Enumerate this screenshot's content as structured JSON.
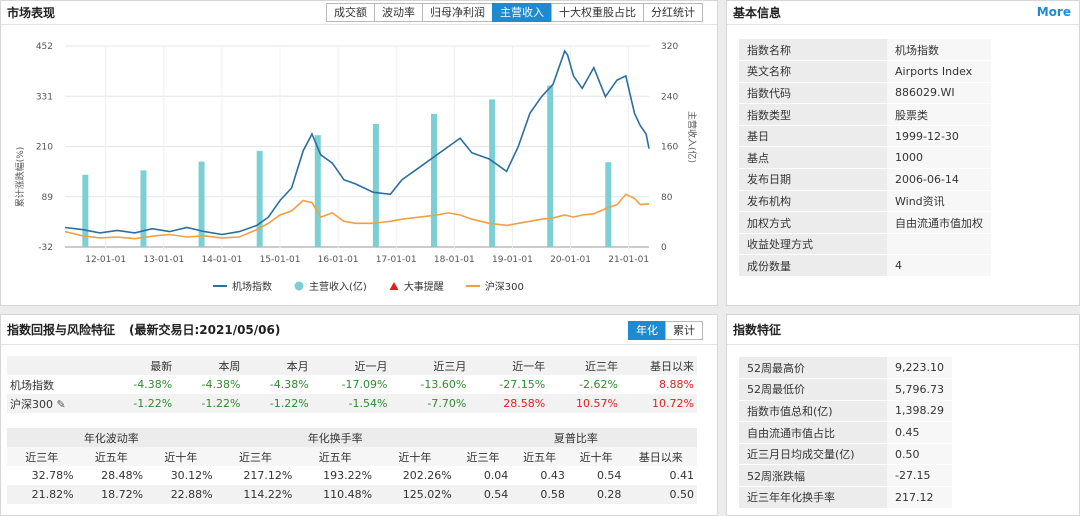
{
  "market": {
    "title": "市场表现",
    "tabs": [
      "成交额",
      "波动率",
      "归母净利润",
      "主营收入",
      "十大权重股占比",
      "分红统计"
    ],
    "active_tab": 3,
    "legend": [
      "机场指数",
      "主营收入(亿)",
      "大事提醒",
      "沪深300"
    ],
    "colors": {
      "index": "#2b6fa0",
      "bars": "#7ccfd4",
      "event": "#e02020",
      "hs300": "#f0a040"
    }
  },
  "chart_data": {
    "type": "line",
    "left_ylabel": "累计涨跌幅(%)",
    "right_ylabel": "主营收入(亿)",
    "left_ticks": [
      "452",
      "331",
      "210",
      "89",
      "-32"
    ],
    "right_ticks": [
      "320",
      "240",
      "160",
      "80",
      "0"
    ],
    "ylim_left": [
      -32,
      452
    ],
    "ylim_right": [
      0,
      320
    ],
    "x_ticks": [
      "12-01-01",
      "13-01-01",
      "14-01-01",
      "15-01-01",
      "16-01-01",
      "17-01-01",
      "18-01-01",
      "19-01-01",
      "20-01-01",
      "21-01-01"
    ],
    "x_range": [
      2011.3,
      2021.35
    ],
    "grid": true,
    "bars": {
      "name": "主营收入(亿)",
      "x": [
        2011.65,
        2012.65,
        2013.65,
        2014.65,
        2015.65,
        2016.65,
        2017.65,
        2018.65,
        2019.65,
        2020.65
      ],
      "values": [
        115,
        122,
        136,
        153,
        178,
        196,
        212,
        235,
        257,
        135
      ]
    },
    "series": [
      {
        "name": "机场指数",
        "x": [
          2011.3,
          2011.6,
          2011.9,
          2012.2,
          2012.5,
          2012.8,
          2013.1,
          2013.4,
          2013.7,
          2014.0,
          2014.3,
          2014.6,
          2014.8,
          2015.0,
          2015.2,
          2015.4,
          2015.55,
          2015.7,
          2015.9,
          2016.1,
          2016.3,
          2016.6,
          2016.9,
          2017.1,
          2017.4,
          2017.7,
          2017.9,
          2018.1,
          2018.3,
          2018.6,
          2018.9,
          2019.1,
          2019.3,
          2019.5,
          2019.7,
          2019.9,
          2019.95,
          2020.05,
          2020.2,
          2020.4,
          2020.6,
          2020.8,
          2020.95,
          2021.1,
          2021.2,
          2021.3,
          2021.35
        ],
        "values": [
          15,
          10,
          2,
          8,
          2,
          12,
          5,
          15,
          5,
          -2,
          5,
          20,
          40,
          80,
          110,
          200,
          240,
          190,
          170,
          130,
          120,
          100,
          95,
          130,
          160,
          190,
          210,
          230,
          195,
          180,
          150,
          210,
          290,
          330,
          360,
          440,
          430,
          380,
          350,
          400,
          330,
          370,
          380,
          290,
          260,
          240,
          205
        ]
      },
      {
        "name": "沪深300",
        "x": [
          2011.3,
          2011.6,
          2011.9,
          2012.2,
          2012.5,
          2012.8,
          2013.1,
          2013.4,
          2013.7,
          2014.0,
          2014.3,
          2014.6,
          2014.8,
          2015.0,
          2015.2,
          2015.4,
          2015.55,
          2015.7,
          2015.9,
          2016.1,
          2016.3,
          2016.6,
          2016.9,
          2017.1,
          2017.4,
          2017.7,
          2017.9,
          2018.1,
          2018.3,
          2018.6,
          2018.9,
          2019.1,
          2019.3,
          2019.5,
          2019.7,
          2019.9,
          2020.05,
          2020.2,
          2020.4,
          2020.6,
          2020.8,
          2020.95,
          2021.1,
          2021.2,
          2021.35
        ],
        "values": [
          5,
          -5,
          -10,
          -8,
          -12,
          -6,
          -2,
          -8,
          -5,
          -10,
          -8,
          10,
          25,
          45,
          55,
          80,
          75,
          40,
          50,
          30,
          25,
          25,
          30,
          35,
          40,
          45,
          50,
          45,
          35,
          25,
          20,
          25,
          30,
          35,
          38,
          45,
          40,
          45,
          48,
          60,
          70,
          95,
          85,
          70,
          72
        ]
      }
    ]
  },
  "basic_info": {
    "title": "基本信息",
    "more": "More",
    "rows": [
      {
        "k": "指数名称",
        "v": "机场指数"
      },
      {
        "k": "英文名称",
        "v": "Airports Index"
      },
      {
        "k": "指数代码",
        "v": "886029.WI"
      },
      {
        "k": "指数类型",
        "v": "股票类"
      },
      {
        "k": "基日",
        "v": "1999-12-30"
      },
      {
        "k": "基点",
        "v": "1000"
      },
      {
        "k": "发布日期",
        "v": "2006-06-14"
      },
      {
        "k": "发布机构",
        "v": "Wind资讯"
      },
      {
        "k": "加权方式",
        "v": "自由流通市值加权"
      },
      {
        "k": "收益处理方式",
        "v": ""
      },
      {
        "k": "成份数量",
        "v": "4"
      }
    ]
  },
  "returns": {
    "title": "指数回报与风险特征",
    "last_date": "(最新交易日:2021/05/06)",
    "toggle": [
      "年化",
      "累计"
    ],
    "headers": [
      "最新",
      "本周",
      "本月",
      "近一月",
      "近三月",
      "近一年",
      "近三年",
      "基日以来"
    ],
    "rows": [
      {
        "name": "机场指数",
        "values": [
          "-4.38%",
          "-4.38%",
          "-4.38%",
          "-17.09%",
          "-13.60%",
          "-27.15%",
          "-2.62%",
          "8.88%"
        ],
        "colors": [
          "neg",
          "neg",
          "neg",
          "neg",
          "neg",
          "neg",
          "neg",
          "pos"
        ]
      },
      {
        "name": "沪深300",
        "values": [
          "-1.22%",
          "-1.22%",
          "-1.22%",
          "-1.54%",
          "-7.70%",
          "28.58%",
          "10.57%",
          "10.72%"
        ],
        "colors": [
          "neg",
          "neg",
          "neg",
          "neg",
          "neg",
          "pos",
          "pos",
          "pos"
        ]
      }
    ],
    "groups": [
      "年化波动率",
      "年化换手率",
      "夏普比率"
    ],
    "subheaders": [
      "近三年",
      "近五年",
      "近十年",
      "近三年",
      "近五年",
      "近十年",
      "近三年",
      "近五年",
      "近十年",
      "基日以来"
    ],
    "risk_rows": [
      [
        "32.78%",
        "28.48%",
        "30.12%",
        "217.12%",
        "193.22%",
        "202.26%",
        "0.04",
        "0.43",
        "0.54",
        "0.41"
      ],
      [
        "21.82%",
        "18.72%",
        "22.88%",
        "114.22%",
        "110.48%",
        "125.02%",
        "0.54",
        "0.58",
        "0.28",
        "0.50"
      ]
    ]
  },
  "features": {
    "title": "指数特征",
    "rows": [
      {
        "k": "52周最高价",
        "v": "9,223.10"
      },
      {
        "k": "52周最低价",
        "v": "5,796.73"
      },
      {
        "k": "指数市值总和(亿)",
        "v": "1,398.29"
      },
      {
        "k": "自由流通市值占比",
        "v": "0.45"
      },
      {
        "k": "近三月日均成交量(亿)",
        "v": "0.50"
      },
      {
        "k": "52周涨跌幅",
        "v": "-27.15"
      },
      {
        "k": "近三年年化换手率",
        "v": "217.12"
      }
    ]
  }
}
